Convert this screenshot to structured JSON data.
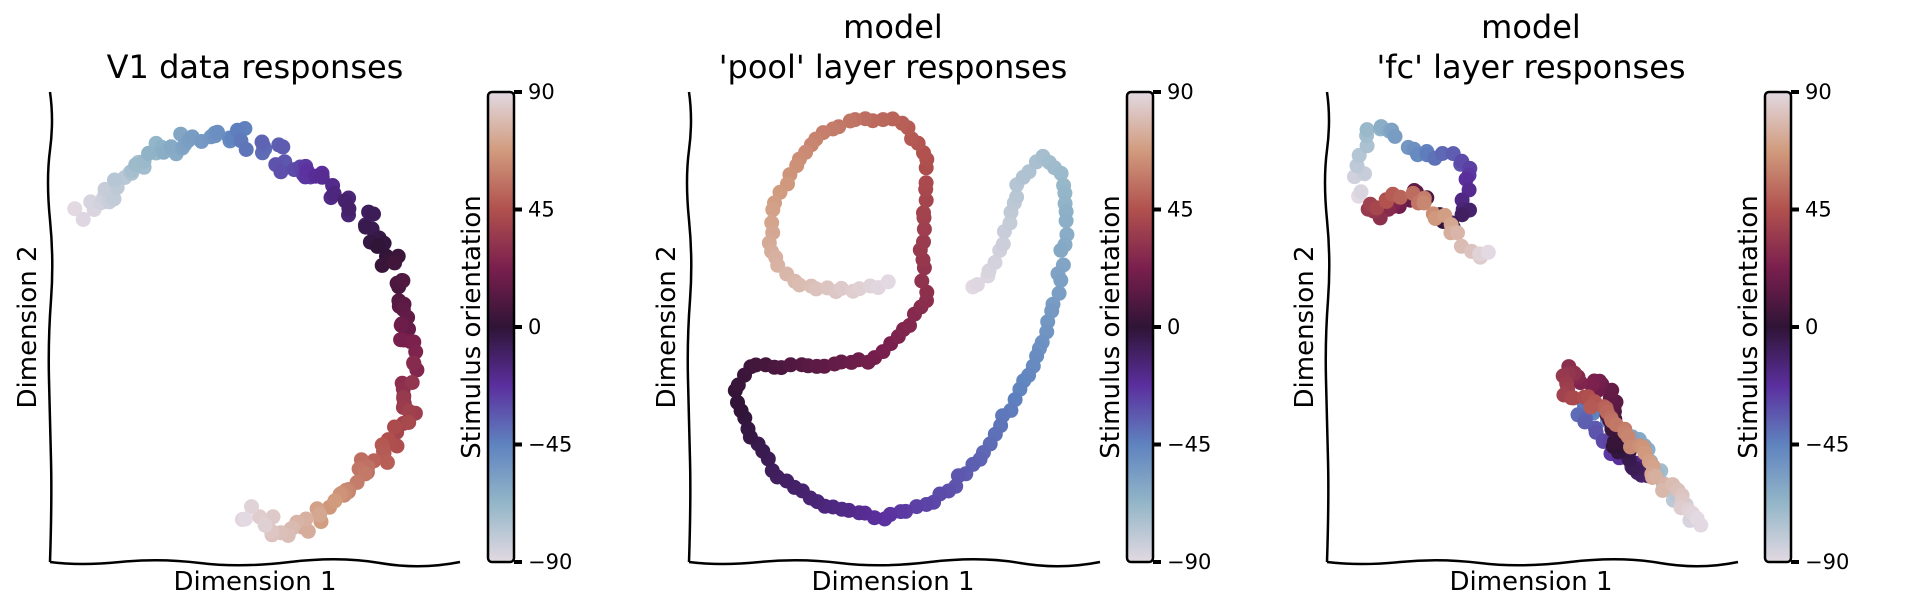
{
  "figure": {
    "panels": [
      {
        "title_lines": [
          "V1 data responses"
        ],
        "xlabel": "Dimension 1",
        "ylabel": "Dimension 2"
      },
      {
        "title_lines": [
          "model",
          "'pool' layer responses"
        ],
        "xlabel": "Dimension 1",
        "ylabel": "Dimension 2"
      },
      {
        "title_lines": [
          "model",
          "'fc' layer responses"
        ],
        "xlabel": "Dimension 1",
        "ylabel": "Dimension 2"
      }
    ],
    "colorbar": {
      "label": "Stimulus orientation",
      "ticks": [
        90,
        45,
        0,
        -45,
        -90
      ],
      "tick_labels": [
        "90",
        "45",
        "0",
        "−45",
        "−90"
      ],
      "colormap": "twilight_shifted",
      "colormap_stops": [
        {
          "value": -90,
          "color": "#e2d9e2"
        },
        {
          "value": -67.5,
          "color": "#93b6c8"
        },
        {
          "value": -45,
          "color": "#5f83bf"
        },
        {
          "value": -22.5,
          "color": "#5b2f9e"
        },
        {
          "value": 0,
          "color": "#2f1436"
        },
        {
          "value": 22.5,
          "color": "#7a1f4e"
        },
        {
          "value": 45,
          "color": "#b1514e"
        },
        {
          "value": 67.5,
          "color": "#d19b7e"
        },
        {
          "value": 90,
          "color": "#e2d9e2"
        }
      ]
    }
  },
  "chart_data": [
    {
      "type": "scatter",
      "title": "V1 data responses",
      "xlabel": "Dimension 1",
      "ylabel": "Dimension 2",
      "color_label": "Stimulus orientation",
      "color_range": [
        -90,
        90
      ],
      "xlim": [
        0,
        1
      ],
      "ylim": [
        0,
        1
      ],
      "path": [
        [
          0.06,
          0.74
        ],
        [
          0.13,
          0.8
        ],
        [
          0.24,
          0.89
        ],
        [
          0.36,
          0.92
        ],
        [
          0.47,
          0.92
        ],
        [
          0.59,
          0.86
        ],
        [
          0.7,
          0.8
        ],
        [
          0.78,
          0.73
        ],
        [
          0.86,
          0.61
        ],
        [
          0.89,
          0.48
        ],
        [
          0.9,
          0.36
        ],
        [
          0.88,
          0.26
        ],
        [
          0.8,
          0.2
        ],
        [
          0.74,
          0.13
        ],
        [
          0.66,
          0.07
        ],
        [
          0.56,
          0.04
        ],
        [
          0.48,
          0.09
        ]
      ],
      "n_points": 160,
      "scatter": 0.022
    },
    {
      "type": "scatter",
      "title": "model 'pool' layer responses",
      "xlabel": "Dimension 1",
      "ylabel": "Dimension 2",
      "color_label": "Stimulus orientation",
      "color_range": [
        -90,
        90
      ],
      "xlim": [
        0,
        1
      ],
      "ylim": [
        0,
        1
      ],
      "path": [
        [
          0.7,
          0.58
        ],
        [
          0.74,
          0.61
        ],
        [
          0.78,
          0.69
        ],
        [
          0.82,
          0.81
        ],
        [
          0.88,
          0.88
        ],
        [
          0.93,
          0.83
        ],
        [
          0.94,
          0.71
        ],
        [
          0.92,
          0.58
        ],
        [
          0.88,
          0.45
        ],
        [
          0.8,
          0.32
        ],
        [
          0.72,
          0.2
        ],
        [
          0.62,
          0.12
        ],
        [
          0.48,
          0.07
        ],
        [
          0.34,
          0.09
        ],
        [
          0.22,
          0.15
        ],
        [
          0.14,
          0.24
        ],
        [
          0.09,
          0.35
        ],
        [
          0.13,
          0.41
        ],
        [
          0.26,
          0.41
        ],
        [
          0.44,
          0.42
        ],
        [
          0.52,
          0.48
        ],
        [
          0.58,
          0.56
        ],
        [
          0.57,
          0.66
        ],
        [
          0.58,
          0.78
        ],
        [
          0.58,
          0.88
        ],
        [
          0.52,
          0.95
        ],
        [
          0.42,
          0.96
        ],
        [
          0.32,
          0.93
        ],
        [
          0.26,
          0.87
        ],
        [
          0.2,
          0.78
        ],
        [
          0.18,
          0.67
        ],
        [
          0.22,
          0.61
        ],
        [
          0.3,
          0.58
        ],
        [
          0.4,
          0.58
        ],
        [
          0.48,
          0.59
        ]
      ],
      "n_points": 170,
      "scatter": 0.006
    },
    {
      "type": "scatter",
      "title": "model 'fc' layer responses",
      "xlabel": "Dimension 1",
      "ylabel": "Dimension 2",
      "color_label": "Stimulus orientation",
      "color_range": [
        -90,
        90
      ],
      "xlim": [
        0,
        1
      ],
      "ylim": [
        0,
        1
      ],
      "path": [
        [
          0.93,
          0.05
        ],
        [
          0.86,
          0.13
        ],
        [
          0.82,
          0.18
        ],
        [
          0.76,
          0.25
        ],
        [
          0.69,
          0.3
        ],
        [
          0.64,
          0.32
        ],
        [
          0.62,
          0.29
        ],
        [
          0.74,
          0.2
        ],
        [
          0.8,
          0.16
        ],
        [
          0.72,
          0.23
        ],
        [
          0.7,
          0.3
        ],
        [
          0.72,
          0.34
        ],
        [
          0.67,
          0.37
        ],
        [
          0.63,
          0.38
        ],
        [
          0.6,
          0.41
        ],
        [
          0.58,
          0.35
        ],
        [
          0.65,
          0.33
        ],
        [
          0.74,
          0.27
        ],
        [
          0.8,
          0.19
        ],
        [
          0.86,
          0.13
        ],
        [
          0.92,
          0.07
        ]
      ],
      "path_b": [
        [
          0.05,
          0.79
        ],
        [
          0.06,
          0.85
        ],
        [
          0.08,
          0.92
        ],
        [
          0.12,
          0.95
        ],
        [
          0.18,
          0.9
        ],
        [
          0.25,
          0.87
        ],
        [
          0.3,
          0.87
        ],
        [
          0.34,
          0.86
        ],
        [
          0.33,
          0.8
        ],
        [
          0.33,
          0.75
        ],
        [
          0.3,
          0.72
        ],
        [
          0.24,
          0.75
        ],
        [
          0.21,
          0.8
        ],
        [
          0.15,
          0.76
        ],
        [
          0.1,
          0.74
        ],
        [
          0.07,
          0.76
        ],
        [
          0.18,
          0.79
        ],
        [
          0.23,
          0.77
        ],
        [
          0.28,
          0.73
        ],
        [
          0.31,
          0.7
        ],
        [
          0.34,
          0.67
        ],
        [
          0.37,
          0.65
        ],
        [
          0.39,
          0.65
        ]
      ],
      "n_points": 120,
      "n_points_b": 70,
      "scatter": 0.012
    }
  ]
}
